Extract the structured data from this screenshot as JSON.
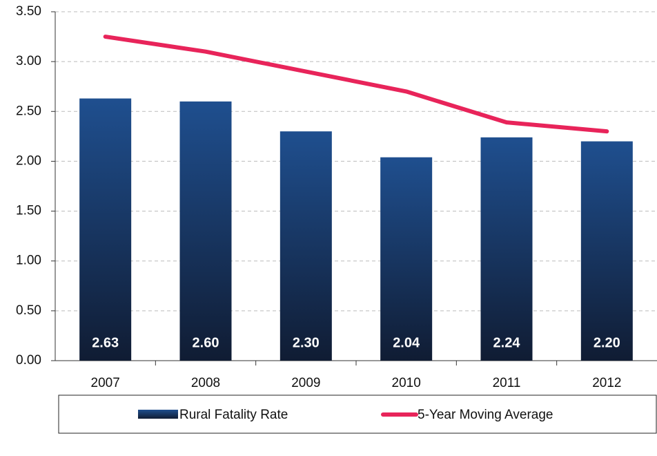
{
  "chart_data": {
    "type": "bar",
    "categories": [
      "2007",
      "2008",
      "2009",
      "2010",
      "2011",
      "2012"
    ],
    "series": [
      {
        "name": "Rural Fatality Rate",
        "color": "#1f4a80",
        "values": [
          2.63,
          2.6,
          2.3,
          2.04,
          2.24,
          2.2
        ],
        "value_labels": [
          "2.63",
          "2.60",
          "2.30",
          "2.04",
          "2.24",
          "2.20"
        ]
      },
      {
        "name": "5-Year Moving Average",
        "type": "line",
        "color": "#e8245a",
        "values": [
          3.25,
          3.1,
          2.9,
          2.7,
          2.39,
          2.3
        ]
      }
    ],
    "ylim": [
      0,
      3.5
    ],
    "yticks": [
      {
        "value": 0,
        "label": "0.00"
      },
      {
        "value": 0.5,
        "label": "0.50"
      },
      {
        "value": 1,
        "label": "1.00"
      },
      {
        "value": 1.5,
        "label": "1.50"
      },
      {
        "value": 2,
        "label": "2.00"
      },
      {
        "value": 2.5,
        "label": "2.50"
      },
      {
        "value": 3,
        "label": "3.00"
      },
      {
        "value": 3.5,
        "label": "3.50"
      }
    ],
    "grid": true
  }
}
